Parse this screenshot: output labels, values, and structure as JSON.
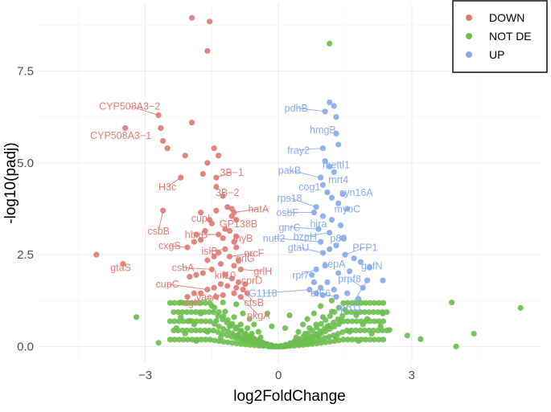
{
  "chart_data": {
    "type": "scatter",
    "xlabel": "log2FoldChange",
    "ylabel": "-log10(padj)",
    "xlim": [
      -5.4,
      5.9
    ],
    "ylim": [
      -0.45,
      9.35
    ],
    "x_ticks": [
      -3,
      0,
      3
    ],
    "y_ticks": [
      0.0,
      2.5,
      5.0,
      7.5
    ],
    "x_tick_labels": [
      "−3",
      "0",
      "3"
    ],
    "y_tick_labels": [
      "0.0",
      "2.5",
      "5.0",
      "7.5"
    ],
    "grid": true,
    "legend_position": "top-right",
    "colors": {
      "DOWN": "#e07b74",
      "NOT DE": "#6cbf4e",
      "UP": "#87a9ef"
    },
    "series": [
      {
        "name": "DOWN",
        "points": [
          [
            -1.95,
            8.95
          ],
          [
            -1.55,
            8.85
          ],
          [
            -1.6,
            8.05
          ],
          [
            -2.7,
            6.3
          ],
          [
            -2.65,
            5.95
          ],
          [
            -3.45,
            5.95
          ],
          [
            -1.95,
            6.1
          ],
          [
            -1.45,
            5.4
          ],
          [
            -1.35,
            5.2
          ],
          [
            -1.6,
            5.0
          ],
          [
            -1.7,
            4.7
          ],
          [
            -1.4,
            4.6
          ],
          [
            -2.1,
            5.2
          ],
          [
            -2.6,
            5.6
          ],
          [
            -2.2,
            4.6
          ],
          [
            -2.5,
            5.4
          ],
          [
            -1.4,
            4.35
          ],
          [
            -1.25,
            4.1
          ],
          [
            -1.15,
            3.8
          ],
          [
            -1.05,
            3.75
          ],
          [
            -1.0,
            3.65
          ],
          [
            -1.05,
            3.55
          ],
          [
            -0.95,
            3.45
          ],
          [
            -1.4,
            3.7
          ],
          [
            -1.75,
            3.65
          ],
          [
            -1.55,
            3.45
          ],
          [
            -1.5,
            3.35
          ],
          [
            -1.65,
            3.15
          ],
          [
            -2.6,
            3.7
          ],
          [
            -1.85,
            3.05
          ],
          [
            -1.75,
            2.9
          ],
          [
            -1.9,
            2.85
          ],
          [
            -2.05,
            2.7
          ],
          [
            -1.35,
            3.05
          ],
          [
            -1.2,
            3.2
          ],
          [
            -1.1,
            3.15
          ],
          [
            -1.25,
            2.95
          ],
          [
            -1.0,
            2.85
          ],
          [
            -0.95,
            2.7
          ],
          [
            -1.2,
            2.65
          ],
          [
            -1.35,
            2.55
          ],
          [
            -1.45,
            2.45
          ],
          [
            -1.6,
            2.35
          ],
          [
            -1.1,
            2.45
          ],
          [
            -0.9,
            2.35
          ],
          [
            -1.3,
            2.25
          ],
          [
            -1.0,
            2.2
          ],
          [
            -0.85,
            2.1
          ],
          [
            -1.5,
            2.1
          ],
          [
            -1.7,
            2.0
          ],
          [
            -1.85,
            1.95
          ],
          [
            -2.0,
            1.9
          ],
          [
            -1.2,
            1.95
          ],
          [
            -1.05,
            1.85
          ],
          [
            -0.9,
            1.75
          ],
          [
            -0.75,
            1.7
          ],
          [
            -0.8,
            1.55
          ],
          [
            -0.95,
            1.6
          ],
          [
            -1.15,
            1.65
          ],
          [
            -1.3,
            1.7
          ],
          [
            -1.45,
            1.6
          ],
          [
            -1.6,
            1.55
          ],
          [
            -1.75,
            1.45
          ],
          [
            -1.9,
            1.45
          ],
          [
            -2.05,
            1.35
          ],
          [
            -1.0,
            1.45
          ],
          [
            -0.85,
            1.35
          ],
          [
            -0.7,
            1.45
          ],
          [
            -1.25,
            1.4
          ],
          [
            -1.4,
            1.35
          ],
          [
            -4.1,
            2.5
          ],
          [
            -3.5,
            2.25
          ],
          [
            -0.95,
            3.0
          ]
        ]
      },
      {
        "name": "NOT DE",
        "points": [
          [
            -2.7,
            0.1
          ],
          [
            -2.2,
            0.8
          ],
          [
            -2.3,
            0.5
          ],
          [
            -2.1,
            0.35
          ],
          [
            -1.9,
            0.6
          ],
          [
            -1.75,
            0.9
          ],
          [
            -1.6,
            0.4
          ],
          [
            -1.5,
            1.1
          ],
          [
            -1.4,
            0.7
          ],
          [
            -1.3,
            0.25
          ],
          [
            -1.2,
            0.95
          ],
          [
            -1.1,
            0.55
          ],
          [
            -1.0,
            0.8
          ],
          [
            -0.95,
            1.15
          ],
          [
            -0.9,
            0.3
          ],
          [
            -0.85,
            0.6
          ],
          [
            -0.8,
            0.9
          ],
          [
            -0.75,
            0.2
          ],
          [
            -0.7,
            0.5
          ],
          [
            -0.65,
            0.75
          ],
          [
            -0.6,
            0.35
          ],
          [
            -0.55,
            0.6
          ],
          [
            -0.5,
            0.15
          ],
          [
            -0.45,
            0.4
          ],
          [
            -0.4,
            0.25
          ],
          [
            -0.35,
            0.1
          ],
          [
            -0.3,
            0.05
          ],
          [
            -0.2,
            0.0
          ],
          [
            -0.1,
            0.0
          ],
          [
            0.0,
            0.0
          ],
          [
            0.1,
            0.0
          ],
          [
            0.2,
            0.02
          ],
          [
            0.3,
            0.06
          ],
          [
            0.35,
            0.12
          ],
          [
            0.4,
            0.25
          ],
          [
            0.45,
            0.4
          ],
          [
            0.5,
            0.15
          ],
          [
            0.55,
            0.6
          ],
          [
            0.6,
            0.35
          ],
          [
            0.65,
            0.75
          ],
          [
            0.7,
            0.5
          ],
          [
            0.75,
            0.2
          ],
          [
            0.8,
            0.9
          ],
          [
            0.85,
            0.6
          ],
          [
            0.9,
            0.3
          ],
          [
            0.95,
            1.1
          ],
          [
            1.0,
            0.8
          ],
          [
            1.1,
            0.55
          ],
          [
            1.2,
            0.95
          ],
          [
            1.3,
            0.25
          ],
          [
            1.4,
            0.7
          ],
          [
            1.5,
            1.0
          ],
          [
            1.6,
            0.4
          ],
          [
            1.75,
            0.85
          ],
          [
            1.9,
            0.6
          ],
          [
            2.1,
            0.35
          ],
          [
            2.3,
            0.55
          ],
          [
            2.5,
            0.45
          ],
          [
            2.9,
            0.3
          ],
          [
            2.35,
            0.9
          ],
          [
            1.2,
            1.25
          ],
          [
            -1.25,
            1.2
          ],
          [
            -2.2,
            1.2
          ],
          [
            -3.2,
            0.8
          ],
          [
            3.9,
            1.2
          ],
          [
            5.45,
            1.05
          ],
          [
            4.0,
            0.0
          ],
          [
            4.4,
            0.35
          ],
          [
            3.2,
            0.2
          ],
          [
            -0.15,
            0.55
          ],
          [
            0.15,
            0.5
          ],
          [
            -0.25,
            0.9
          ],
          [
            0.25,
            0.85
          ],
          [
            1.8,
            0.15
          ],
          [
            -1.85,
            0.15
          ],
          [
            2.0,
            0.75
          ],
          [
            -2.0,
            0.7
          ],
          [
            1.15,
            8.25
          ]
        ]
      },
      {
        "name": "UP",
        "points": [
          [
            1.15,
            6.65
          ],
          [
            1.05,
            6.4
          ],
          [
            1.25,
            6.55
          ],
          [
            1.3,
            6.25
          ],
          [
            1.3,
            5.8
          ],
          [
            1.35,
            5.5
          ],
          [
            1.0,
            5.4
          ],
          [
            1.05,
            5.05
          ],
          [
            1.15,
            4.9
          ],
          [
            0.95,
            4.6
          ],
          [
            1.25,
            4.75
          ],
          [
            1.0,
            4.4
          ],
          [
            1.1,
            4.2
          ],
          [
            1.2,
            4.05
          ],
          [
            1.35,
            3.9
          ],
          [
            1.45,
            4.15
          ],
          [
            1.55,
            3.75
          ],
          [
            0.85,
            3.8
          ],
          [
            0.8,
            3.65
          ],
          [
            1.0,
            3.55
          ],
          [
            1.2,
            3.45
          ],
          [
            1.4,
            3.3
          ],
          [
            0.9,
            3.2
          ],
          [
            1.15,
            3.1
          ],
          [
            1.45,
            2.95
          ],
          [
            1.3,
            2.75
          ],
          [
            0.95,
            2.85
          ],
          [
            1.0,
            2.55
          ],
          [
            1.15,
            2.65
          ],
          [
            1.5,
            2.5
          ],
          [
            1.7,
            2.4
          ],
          [
            1.85,
            2.3
          ],
          [
            2.05,
            2.15
          ],
          [
            2.35,
            1.8
          ],
          [
            1.6,
            2.05
          ],
          [
            1.35,
            2.0
          ],
          [
            1.05,
            2.2
          ],
          [
            0.85,
            2.1
          ],
          [
            0.75,
            1.95
          ],
          [
            0.8,
            1.75
          ],
          [
            0.95,
            1.6
          ],
          [
            1.1,
            1.75
          ],
          [
            1.25,
            1.55
          ],
          [
            0.85,
            1.45
          ],
          [
            1.0,
            1.4
          ],
          [
            1.3,
            1.35
          ],
          [
            1.55,
            1.45
          ],
          [
            1.8,
            1.3
          ],
          [
            0.7,
            1.55
          ],
          [
            1.9,
            1.6
          ],
          [
            2.0,
            1.8
          ]
        ]
      }
    ],
    "labels": [
      {
        "text": "CYP508A3−2",
        "group": "DOWN",
        "x": -3.35,
        "y": 6.55,
        "px": -2.7,
        "py": 6.3
      },
      {
        "text": "CYP508A3−1",
        "group": "DOWN",
        "x": -3.55,
        "y": 5.75,
        "px": -3.45,
        "py": 5.95
      },
      {
        "text": "3B−1",
        "group": "DOWN",
        "x": -1.05,
        "y": 4.75,
        "px": -1.4,
        "py": 4.6
      },
      {
        "text": "H3c",
        "group": "DOWN",
        "x": -2.5,
        "y": 4.35,
        "px": -2.2,
        "py": 4.6
      },
      {
        "text": "3B−2",
        "group": "DOWN",
        "x": -1.15,
        "y": 4.2,
        "px": -1.4,
        "py": 4.35
      },
      {
        "text": "hatA",
        "group": "DOWN",
        "x": -0.45,
        "y": 3.75,
        "px": -1.0,
        "py": 3.65
      },
      {
        "text": "cupI",
        "group": "DOWN",
        "x": -1.75,
        "y": 3.5,
        "px": -1.55,
        "py": 3.45
      },
      {
        "text": "GP138B",
        "group": "DOWN",
        "x": -0.9,
        "y": 3.35,
        "px": -1.05,
        "py": 3.55
      },
      {
        "text": "csbB",
        "group": "DOWN",
        "x": -2.7,
        "y": 3.15,
        "px": -2.6,
        "py": 3.7
      },
      {
        "text": "hbxB",
        "group": "DOWN",
        "x": -1.85,
        "y": 3.05,
        "px": -1.35,
        "py": 3.05
      },
      {
        "text": "thyB",
        "group": "DOWN",
        "x": -0.8,
        "y": 2.95,
        "px": -1.0,
        "py": 2.85
      },
      {
        "text": "cxgS",
        "group": "DOWN",
        "x": -2.45,
        "y": 2.75,
        "px": -2.05,
        "py": 2.7
      },
      {
        "text": "islB",
        "group": "DOWN",
        "x": -1.55,
        "y": 2.6,
        "px": -1.2,
        "py": 2.65
      },
      {
        "text": "orcF",
        "group": "DOWN",
        "x": -0.55,
        "y": 2.55,
        "px": -1.1,
        "py": 2.45
      },
      {
        "text": "grlG",
        "group": "DOWN",
        "x": -0.75,
        "y": 2.4,
        "px": -0.9,
        "py": 2.35
      },
      {
        "text": "csbA",
        "group": "DOWN",
        "x": -2.15,
        "y": 2.15,
        "px": -1.5,
        "py": 2.1
      },
      {
        "text": "grlH",
        "group": "DOWN",
        "x": -0.35,
        "y": 2.05,
        "px": -0.85,
        "py": 2.1
      },
      {
        "text": "kif10",
        "group": "DOWN",
        "x": -1.2,
        "y": 1.95,
        "px": -1.05,
        "py": 1.85
      },
      {
        "text": "gtaS",
        "group": "DOWN",
        "x": -3.55,
        "y": 2.15,
        "px": -3.5,
        "py": 2.25
      },
      {
        "text": "cprD",
        "group": "DOWN",
        "x": -0.6,
        "y": 1.8,
        "px": -0.9,
        "py": 1.75
      },
      {
        "text": "cupC",
        "group": "DOWN",
        "x": -2.5,
        "y": 1.7,
        "px": -1.6,
        "py": 1.55
      },
      {
        "text": "vacA",
        "group": "DOWN",
        "x": -1.6,
        "y": 1.35,
        "px": -1.25,
        "py": 1.4
      },
      {
        "text": "sgK",
        "group": "DOWN",
        "x": -1.95,
        "y": 1.2,
        "px": -1.4,
        "py": 1.35
      },
      {
        "text": "ctsB",
        "group": "DOWN",
        "x": -0.55,
        "y": 1.2,
        "px": -0.8,
        "py": 1.55
      },
      {
        "text": "pkgA",
        "group": "DOWN",
        "x": -0.45,
        "y": 0.85,
        "px": -0.85,
        "py": 1.35
      },
      {
        "text": "pdhB",
        "group": "UP",
        "x": 0.4,
        "y": 6.5,
        "px": 1.05,
        "py": 6.4
      },
      {
        "text": "hmgB",
        "group": "UP",
        "x": 1.0,
        "y": 5.9,
        "px": 1.3,
        "py": 5.8
      },
      {
        "text": "fray2",
        "group": "UP",
        "x": 0.45,
        "y": 5.35,
        "px": 1.0,
        "py": 5.4
      },
      {
        "text": "mettl1",
        "group": "UP",
        "x": 1.3,
        "y": 4.95,
        "px": 1.05,
        "py": 5.05
      },
      {
        "text": "pakB",
        "group": "UP",
        "x": 0.25,
        "y": 4.8,
        "px": 0.95,
        "py": 4.6
      },
      {
        "text": "mrt4",
        "group": "UP",
        "x": 1.35,
        "y": 4.55,
        "px": 1.25,
        "py": 4.75
      },
      {
        "text": "cog1",
        "group": "UP",
        "x": 0.7,
        "y": 4.35,
        "px": 1.0,
        "py": 4.4
      },
      {
        "text": "syn16A",
        "group": "UP",
        "x": 1.75,
        "y": 4.2,
        "px": 1.45,
        "py": 4.15
      },
      {
        "text": "rps18",
        "group": "UP",
        "x": 0.25,
        "y": 4.05,
        "px": 0.85,
        "py": 3.8
      },
      {
        "text": "myoC",
        "group": "UP",
        "x": 1.55,
        "y": 3.75,
        "px": 1.35,
        "py": 3.9
      },
      {
        "text": "osbF",
        "group": "UP",
        "x": 0.2,
        "y": 3.65,
        "px": 0.8,
        "py": 3.65
      },
      {
        "text": "hira",
        "group": "UP",
        "x": 0.9,
        "y": 3.35,
        "px": 1.0,
        "py": 3.55
      },
      {
        "text": "gnrC",
        "group": "UP",
        "x": 0.25,
        "y": 3.25,
        "px": 0.9,
        "py": 3.2
      },
      {
        "text": "nutf2",
        "group": "UP",
        "x": -0.1,
        "y": 2.95,
        "px": 0.95,
        "py": 2.85
      },
      {
        "text": "bzpH",
        "group": "UP",
        "x": 0.6,
        "y": 3.0,
        "px": 1.15,
        "py": 3.1
      },
      {
        "text": "p80",
        "group": "UP",
        "x": 1.35,
        "y": 2.95,
        "px": 1.45,
        "py": 2.95
      },
      {
        "text": "gtaU",
        "group": "UP",
        "x": 0.45,
        "y": 2.7,
        "px": 1.0,
        "py": 2.55
      },
      {
        "text": "PFP1",
        "group": "UP",
        "x": 1.95,
        "y": 2.7,
        "px": 1.5,
        "py": 2.5
      },
      {
        "text": "sepA",
        "group": "UP",
        "x": 1.25,
        "y": 2.25,
        "px": 1.35,
        "py": 2.0
      },
      {
        "text": "gefN",
        "group": "UP",
        "x": 2.1,
        "y": 2.2,
        "px": 1.85,
        "py": 2.3
      },
      {
        "text": "rpl7",
        "group": "UP",
        "x": 0.5,
        "y": 1.95,
        "px": 0.85,
        "py": 2.1
      },
      {
        "text": "prpf8",
        "group": "UP",
        "x": 1.6,
        "y": 1.85,
        "px": 1.9,
        "py": 1.6
      },
      {
        "text": "G1118",
        "group": "UP",
        "x": -0.35,
        "y": 1.45,
        "px": 0.7,
        "py": 1.55
      },
      {
        "text": "eIF6",
        "group": "UP",
        "x": 0.95,
        "y": 1.45,
        "px": 1.3,
        "py": 1.35
      },
      {
        "text": "rpb11",
        "group": "UP",
        "x": 1.6,
        "y": 1.05,
        "px": 2.0,
        "py": 1.8
      }
    ]
  }
}
